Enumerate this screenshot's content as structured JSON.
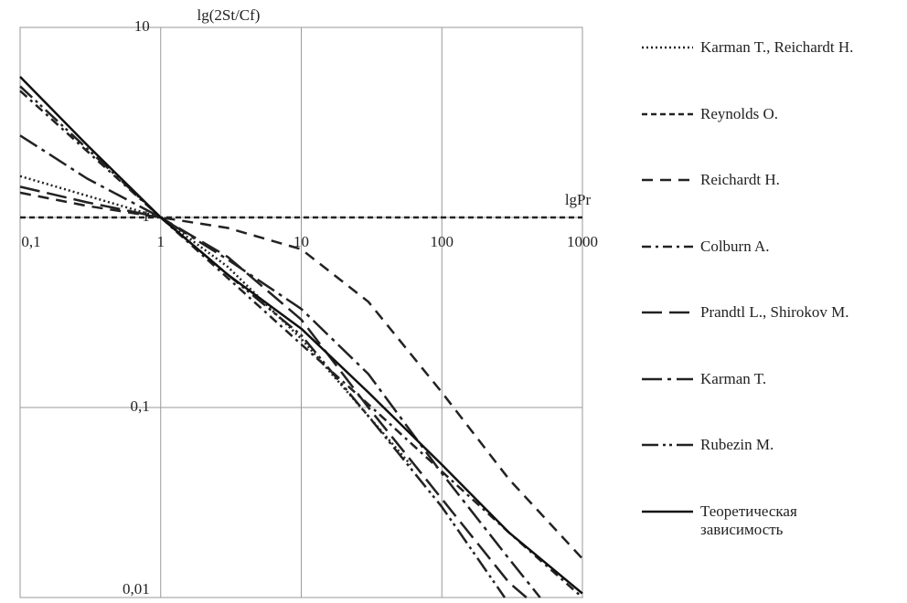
{
  "chart_data": {
    "type": "line",
    "x_label": "lgPr",
    "y_label": "lg(2St/Cf)",
    "log_x": true,
    "log_y": true,
    "grid": true,
    "xlim": [
      0.1,
      1000
    ],
    "ylim": [
      0.01,
      10
    ],
    "xticks": [
      {
        "value": 0.1,
        "label": "0,1"
      },
      1,
      10,
      100,
      1000
    ],
    "yticks": [
      {
        "value": 0.01,
        "label": "0,01"
      },
      {
        "value": 0.1,
        "label": "0,1"
      },
      1,
      10
    ],
    "series": [
      {
        "name": "Karman T., Reichardt H.",
        "color": "#222",
        "dash": "2,3",
        "x": [
          0.1,
          0.3,
          1,
          3,
          10,
          30,
          60
        ],
        "values": [
          1.65,
          1.3,
          1,
          0.55,
          0.23,
          0.09,
          0.05
        ]
      },
      {
        "name": "Reynolds O.",
        "color": "#222",
        "dash": "6,4",
        "x": [
          0.1,
          1000
        ],
        "values": [
          1,
          1
        ]
      },
      {
        "name": "Reichardt H.",
        "color": "#222",
        "dash": "12,8",
        "x": [
          0.1,
          0.3,
          1,
          3,
          10,
          30,
          100,
          300,
          1000
        ],
        "values": [
          1.35,
          1.15,
          1,
          0.88,
          0.68,
          0.36,
          0.12,
          0.042,
          0.016
        ]
      },
      {
        "name": "Colburn A.",
        "color": "#222",
        "dash": "10,5,3,5",
        "x": [
          0.1,
          0.3,
          1,
          3,
          10,
          30,
          100,
          300,
          1000
        ],
        "values": [
          4.64,
          2.23,
          1,
          0.48,
          0.215,
          0.104,
          0.046,
          0.022,
          0.01
        ]
      },
      {
        "name": "Prandtl L., Shirokov M.",
        "color": "#222",
        "dash": "22,8",
        "x": [
          0.1,
          0.3,
          1,
          3,
          10,
          30,
          100,
          300,
          400
        ],
        "values": [
          1.45,
          1.2,
          1,
          0.62,
          0.29,
          0.1,
          0.033,
          0.012,
          0.01
        ]
      },
      {
        "name": "Karman T.",
        "color": "#222",
        "dash": "22,6,4,6",
        "x": [
          0.1,
          0.3,
          1,
          3,
          10,
          30,
          100,
          300,
          500
        ],
        "values": [
          2.7,
          1.6,
          1,
          0.6,
          0.33,
          0.15,
          0.045,
          0.016,
          0.01
        ]
      },
      {
        "name": "Rubezin M.",
        "color": "#222",
        "dash": "18,5,3,4,3,5",
        "x": [
          0.1,
          0.3,
          1,
          3,
          10,
          30,
          100,
          280
        ],
        "values": [
          4.9,
          2.3,
          1,
          0.5,
          0.24,
          0.09,
          0.03,
          0.01
        ]
      },
      {
        "name": "Теоретическая зависимость",
        "color": "#111",
        "dash": "none",
        "x": [
          0.1,
          0.3,
          1,
          3,
          10,
          30,
          100,
          300,
          1000
        ],
        "values": [
          5.5,
          2.4,
          1,
          0.5,
          0.26,
          0.12,
          0.05,
          0.022,
          0.0105
        ]
      }
    ]
  }
}
